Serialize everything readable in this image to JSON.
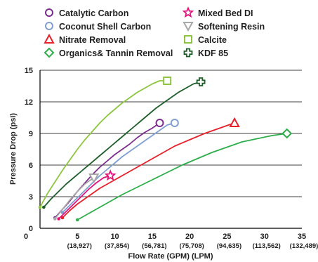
{
  "chart_data": {
    "type": "line",
    "xlabel": "Flow Rate (GPM) (LPM)",
    "ylabel": "Pressure Drop (psi)",
    "xlim": [
      0,
      35
    ],
    "ylim": [
      0,
      15
    ],
    "x_ticks": [
      {
        "value": 0,
        "label": "0"
      },
      {
        "value": 5,
        "label": "5"
      },
      {
        "value": 10,
        "label": "10"
      },
      {
        "value": 15,
        "label": "15"
      },
      {
        "value": 20,
        "label": "20"
      },
      {
        "value": 25,
        "label": "25"
      },
      {
        "value": 30,
        "label": "30"
      },
      {
        "value": 35,
        "label": "35"
      }
    ],
    "x_tick_secondary": [
      {
        "value": 5,
        "label": "(18,927)"
      },
      {
        "value": 10,
        "label": "(37,854)"
      },
      {
        "value": 15,
        "label": "(56,781)"
      },
      {
        "value": 20,
        "label": "(75,708)"
      },
      {
        "value": 25,
        "label": "(94,635)"
      },
      {
        "value": 30,
        "label": "(113,562)"
      },
      {
        "value": 35,
        "label": "(132,489)"
      }
    ],
    "y_ticks": [
      0,
      3,
      6,
      9,
      12,
      15
    ],
    "grid": "horizontal",
    "legend_position": "top",
    "series": [
      {
        "name": "Catalytic Carbon",
        "color": "#7b2d8e",
        "marker": "circle",
        "x": [
          2,
          3,
          4,
          5,
          6,
          7,
          8,
          9,
          10,
          11,
          12,
          13,
          14,
          15,
          16
        ],
        "y": [
          1.0,
          1.8,
          2.6,
          3.5,
          4.3,
          5.1,
          5.8,
          6.4,
          7.0,
          7.5,
          8.0,
          8.6,
          9.1,
          9.5,
          10.0
        ]
      },
      {
        "name": "Coconut Shell Carbon",
        "color": "#7f9fd2",
        "marker": "circle",
        "x": [
          3,
          4,
          5,
          6,
          7,
          8,
          9,
          10,
          11,
          12,
          13,
          14,
          15,
          16,
          17,
          18
        ],
        "y": [
          1.5,
          2.2,
          2.9,
          3.6,
          4.3,
          5.0,
          5.6,
          6.2,
          6.8,
          7.3,
          7.8,
          8.3,
          8.8,
          9.3,
          9.8,
          10.0
        ]
      },
      {
        "name": "Nitrate Removal",
        "color": "#e8202a",
        "marker": "triangle",
        "x": [
          3,
          4,
          5,
          6,
          7,
          8,
          10,
          12,
          14,
          16,
          18,
          20,
          22,
          24,
          26
        ],
        "y": [
          1.0,
          1.7,
          2.3,
          2.8,
          3.3,
          3.8,
          4.6,
          5.4,
          6.2,
          7.0,
          7.8,
          8.4,
          9.0,
          9.5,
          10.0
        ]
      },
      {
        "name": "Organics& Tannin Removal",
        "color": "#2dae4a",
        "marker": "diamond",
        "x": [
          5,
          7,
          9,
          11,
          13,
          15,
          17,
          19,
          21,
          23,
          25,
          27,
          29,
          31,
          33
        ],
        "y": [
          0.8,
          1.6,
          2.4,
          3.2,
          3.9,
          4.6,
          5.3,
          6.0,
          6.6,
          7.2,
          7.7,
          8.2,
          8.5,
          8.8,
          9.0
        ]
      },
      {
        "name": "Mixed Bed DI",
        "color": "#e2147c",
        "marker": "star",
        "x": [
          2.5,
          3.5,
          4.5,
          5.5,
          6.5,
          7.5,
          8.5,
          9.4
        ],
        "y": [
          0.9,
          1.6,
          2.3,
          3.0,
          3.7,
          4.3,
          4.8,
          5.0
        ]
      },
      {
        "name": "Softening Resin",
        "color": "#a8a8a8",
        "marker": "triangle-down",
        "x": [
          2,
          3,
          4,
          5,
          6,
          7.2
        ],
        "y": [
          0.9,
          1.8,
          2.7,
          3.5,
          4.2,
          4.8
        ]
      },
      {
        "name": "Calcite",
        "color": "#8cc63f",
        "marker": "square",
        "x": [
          0,
          1,
          2,
          3,
          4,
          5,
          6,
          7,
          8,
          9,
          10,
          11,
          12,
          13,
          14,
          15,
          16,
          17
        ],
        "y": [
          2.0,
          3.3,
          4.4,
          5.5,
          6.5,
          7.5,
          8.4,
          9.2,
          10.0,
          10.7,
          11.3,
          11.9,
          12.4,
          12.9,
          13.3,
          13.7,
          14.0,
          14.0
        ]
      },
      {
        "name": "KDF 85",
        "color": "#1e5e2a",
        "marker": "cross",
        "x": [
          0.5,
          1.5,
          2.5,
          3.5,
          4.5,
          5.5,
          6.5,
          7.5,
          8.5,
          9.5,
          10.5,
          11.5,
          12.5,
          13.5,
          14.5,
          15.5,
          16.5,
          17.5,
          18.5,
          19.5,
          20.5,
          21.5
        ],
        "y": [
          2.0,
          2.8,
          3.5,
          4.2,
          4.8,
          5.4,
          6.0,
          6.6,
          7.2,
          7.8,
          8.4,
          9.0,
          9.6,
          10.2,
          10.8,
          11.4,
          11.9,
          12.4,
          12.9,
          13.3,
          13.7,
          13.9
        ]
      }
    ]
  }
}
